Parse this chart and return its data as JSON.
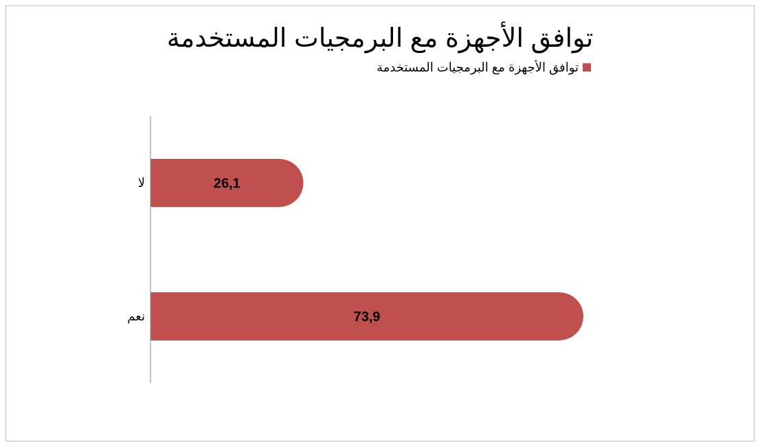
{
  "chart_data": {
    "type": "bar",
    "orientation": "horizontal",
    "title": "توافق الأجهزة مع البرمجيات المستخدمة",
    "categories": [
      "لا",
      "نعم"
    ],
    "series": [
      {
        "name": "توافق الأجهزة مع البرمجيات المستخدمة",
        "color": "#c0504d",
        "values": [
          26.1,
          73.9
        ],
        "value_labels": [
          "26,1",
          "73,9"
        ]
      }
    ],
    "legend": "top",
    "grid": false
  }
}
